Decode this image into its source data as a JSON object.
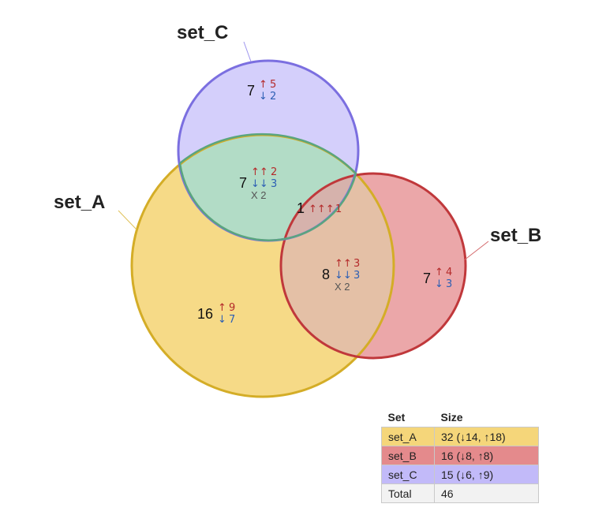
{
  "sets": [
    {
      "id": "set_A",
      "label": "set_A",
      "fill": "#f5d67a",
      "stroke": "#d4ad27"
    },
    {
      "id": "set_B",
      "label": "set_B",
      "fill": "#e48a8c",
      "stroke": "#c0383b"
    },
    {
      "id": "set_C",
      "label": "set_C",
      "fill": "#c2baf9",
      "stroke": "#7b6fe0"
    }
  ],
  "regions": [
    {
      "id": "C_only",
      "count": "7",
      "up": "↑",
      "up_n": "5",
      "down": "↓",
      "down_n": "2"
    },
    {
      "id": "A_C",
      "count": "7",
      "up": "↑↑",
      "up_n": "2",
      "down": "↓↓",
      "down_n": "3",
      "mixed": "X 2"
    },
    {
      "id": "A_B_C",
      "count": "1",
      "up": "↑↑↑",
      "up_n": "1"
    },
    {
      "id": "A_B",
      "count": "8",
      "up": "↑↑",
      "up_n": "3",
      "down": "↓↓",
      "down_n": "3",
      "mixed": "X 2"
    },
    {
      "id": "B_only",
      "count": "7",
      "up": "↑",
      "up_n": "4",
      "down": "↓",
      "down_n": "3"
    },
    {
      "id": "A_only",
      "count": "16",
      "up": "↑",
      "up_n": "9",
      "down": "↓",
      "down_n": "7"
    }
  ],
  "legend": {
    "headers": [
      "Set",
      "Size"
    ],
    "rows": [
      {
        "set": "set_A",
        "size": "32 (↓14, ↑18)",
        "color": "#f5d67a"
      },
      {
        "set": "set_B",
        "size": "16 (↓8, ↑8)",
        "color": "#e48a8c"
      },
      {
        "set": "set_C",
        "size": "15 (↓6, ↑9)",
        "color": "#c2baf9"
      },
      {
        "set": "Total",
        "size": "46",
        "color": "#f2f2f2"
      }
    ]
  }
}
